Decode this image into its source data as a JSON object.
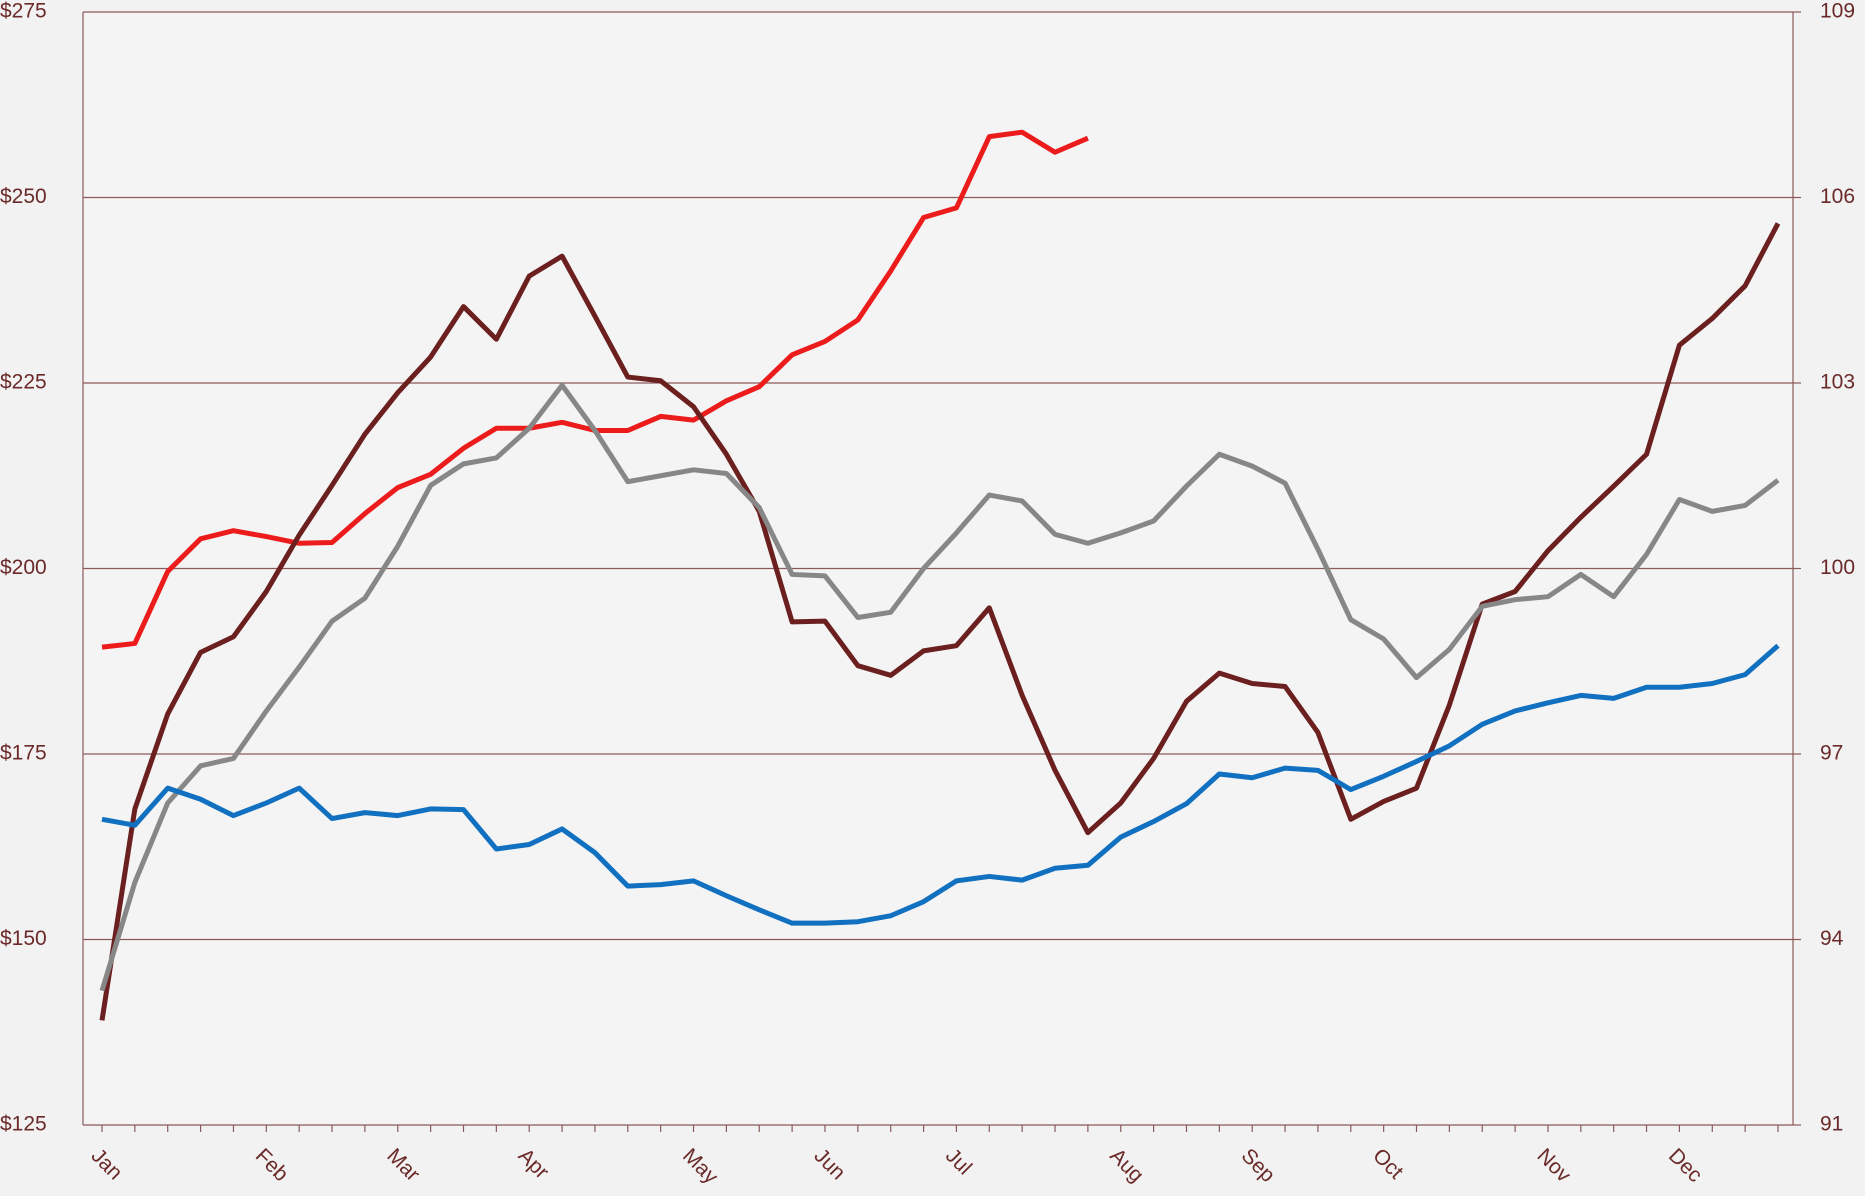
{
  "chart_data": {
    "type": "line",
    "categories": [
      "Jan",
      null,
      null,
      null,
      null,
      "Feb",
      null,
      null,
      null,
      "Mar",
      null,
      null,
      null,
      "Apr",
      null,
      null,
      null,
      null,
      "May",
      null,
      null,
      null,
      "Jun",
      null,
      null,
      null,
      "Jul",
      null,
      null,
      null,
      null,
      "Aug",
      null,
      null,
      null,
      "Sep",
      null,
      null,
      null,
      "Oct",
      null,
      null,
      null,
      null,
      "Nov",
      null,
      null,
      null,
      "Dec",
      null,
      null,
      null
    ],
    "series": [
      {
        "color": "#ec1c1c",
        "values": [
          189.4,
          189.9,
          199.6,
          204.0,
          205.1,
          204.3,
          203.4,
          203.5,
          207.4,
          210.9,
          212.7,
          216.2,
          218.9,
          218.9,
          219.7,
          218.6,
          218.6,
          220.5,
          220.0,
          222.6,
          224.5,
          228.8,
          230.6,
          233.5,
          240.1,
          247.3,
          248.6,
          258.2,
          258.8,
          256.1,
          258.0,
          null,
          null,
          null,
          null,
          null,
          null,
          null,
          null,
          null,
          null,
          null,
          null,
          null,
          null,
          null,
          null,
          null,
          null,
          null,
          null,
          null
        ]
      },
      {
        "color": "#6b1f1f",
        "values": [
          139.1,
          167.6,
          180.4,
          188.7,
          190.8,
          196.9,
          204.5,
          211.2,
          218.1,
          223.7,
          228.5,
          235.3,
          230.9,
          239.4,
          242.1,
          234.0,
          225.8,
          225.3,
          221.8,
          215.4,
          207.7,
          192.8,
          192.9,
          186.9,
          185.6,
          188.9,
          189.6,
          194.7,
          182.9,
          172.8,
          164.4,
          168.4,
          174.4,
          182.1,
          185.9,
          184.5,
          184.1,
          177.9,
          166.2,
          168.6,
          170.4,
          181.6,
          195.2,
          196.9,
          202.4,
          206.9,
          211.1,
          215.4,
          230.1,
          233.7,
          238.1,
          246.5
        ]
      },
      {
        "color": "#878787",
        "values": [
          143.1,
          157.7,
          168.4,
          173.4,
          174.4,
          180.8,
          186.7,
          192.9,
          196.0,
          203.0,
          211.2,
          214.1,
          214.9,
          218.9,
          224.7,
          218.6,
          211.7,
          212.5,
          213.3,
          212.8,
          208.2,
          199.2,
          199.0,
          193.4,
          194.1,
          200.0,
          204.8,
          209.9,
          209.1,
          204.6,
          203.4,
          204.8,
          206.4,
          211.1,
          215.4,
          213.8,
          211.5,
          202.6,
          193.1,
          190.5,
          185.3,
          189.1,
          194.9,
          195.8,
          196.2,
          199.2,
          196.2,
          201.9,
          209.3,
          207.7,
          208.5,
          211.9
        ]
      },
      {
        "color": "#1170c0",
        "values": [
          166.2,
          165.4,
          170.4,
          168.9,
          166.7,
          168.4,
          170.4,
          166.3,
          167.1,
          166.7,
          167.6,
          167.5,
          162.2,
          162.8,
          164.9,
          161.7,
          157.2,
          157.4,
          157.9,
          155.9,
          154.0,
          152.2,
          152.2,
          152.4,
          153.2,
          155.1,
          157.9,
          158.5,
          158.0,
          159.6,
          160.0,
          163.8,
          165.9,
          168.3,
          172.3,
          171.8,
          173.1,
          172.8,
          170.2,
          172.0,
          174.0,
          176.1,
          179.0,
          180.8,
          181.9,
          182.9,
          182.5,
          184.0,
          184.0,
          184.5,
          185.7,
          189.6
        ]
      }
    ],
    "ylim": [
      125,
      275
    ],
    "yticks": [
      {
        "value": 125,
        "label": "$125"
      },
      {
        "value": 150,
        "label": "$150"
      },
      {
        "value": 175,
        "label": "$175"
      },
      {
        "value": 200,
        "label": "$200"
      },
      {
        "value": 225,
        "label": "$225"
      },
      {
        "value": 250,
        "label": "$250"
      },
      {
        "value": 275,
        "label": "$275"
      }
    ],
    "y2lim": [
      91,
      109
    ],
    "y2ticks": [
      91,
      94,
      97,
      100,
      103,
      106,
      109
    ],
    "grid": true
  }
}
